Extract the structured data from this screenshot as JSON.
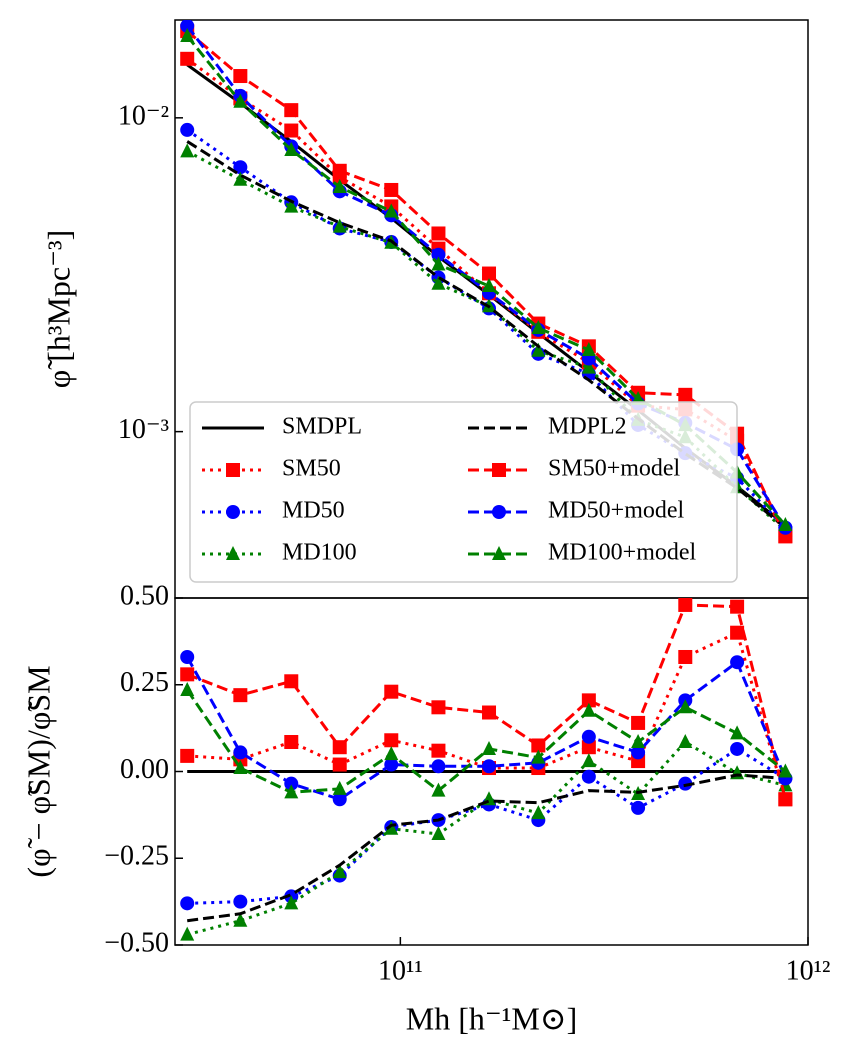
{
  "chart_data": [
    {
      "type": "line",
      "xscale": "log",
      "yscale": "log",
      "ylabel": "φ̃ [h³Mpc⁻³]",
      "xlim": [
        28000000000.0,
        1000000000000.0
      ],
      "ylim": [
        0.000295,
        0.0205
      ],
      "yticks": [
        {
          "value": 0.01,
          "label": "10⁻²"
        },
        {
          "value": 0.001,
          "label": "10⁻³"
        }
      ],
      "legend": "lower left",
      "x": [
        30000000000.0,
        40500000000.0,
        54000000000.0,
        71000000000.0,
        95000000000.0,
        124000000000.0,
        165000000000.0,
        218000000000.0,
        290000000000.0,
        383000000000.0,
        500000000000.0,
        670000000000.0,
        880000000000.0
      ],
      "series": [
        {
          "name": "SMDPL",
          "color": "#000000",
          "linestyle": "solid",
          "marker": "none",
          "values": [
            0.01476,
            0.01114,
            0.0084,
            0.00634,
            0.00479,
            0.00361,
            0.00273,
            0.00206,
            0.00155,
            0.00117,
            0.000885,
            0.000668,
            0.000504
          ]
        },
        {
          "name": "SM50",
          "color": "#ff0000",
          "linestyle": "dotted",
          "marker": "square",
          "values": [
            0.01542,
            0.01153,
            0.00911,
            0.00647,
            0.00522,
            0.00383,
            0.00276,
            0.00208,
            0.00166,
            0.00121,
            0.001177,
            0.000935,
            0.000464
          ]
        },
        {
          "name": "MD50",
          "color": "#0000ff",
          "linestyle": "dotted",
          "marker": "circle",
          "values": [
            0.00915,
            0.00696,
            0.00538,
            0.00444,
            0.00402,
            0.0031,
            0.00247,
            0.00177,
            0.00153,
            0.00105,
            0.000854,
            0.000711,
            0.000494
          ]
        },
        {
          "name": "MD100",
          "color": "#008000",
          "linestyle": "dotted",
          "marker": "triangle",
          "values": [
            0.00782,
            0.00635,
            0.00521,
            0.0045,
            0.004,
            0.00296,
            0.00251,
            0.00181,
            0.0016,
            0.00109,
            0.00096,
            0.000665,
            0.000484
          ]
        },
        {
          "name": "MDPL2",
          "color": "#000000",
          "linestyle": "dashed",
          "marker": "none",
          "values": [
            0.00841,
            0.00657,
            0.00542,
            0.00463,
            0.00405,
            0.0031,
            0.0025,
            0.00187,
            0.00146,
            0.0011,
            0.00085,
            0.000661,
            0.000494
          ]
        },
        {
          "name": "SM50+model",
          "color": "#ff0000",
          "linestyle": "dashed",
          "marker": "square",
          "values": [
            0.01889,
            0.01359,
            0.01058,
            0.00678,
            0.00589,
            0.00428,
            0.00319,
            0.00221,
            0.00187,
            0.00133,
            0.00131,
            0.000985,
            0.000464
          ]
        },
        {
          "name": "MD50+model",
          "color": "#0000ff",
          "linestyle": "dashed",
          "marker": "circle",
          "values": [
            0.01963,
            0.01175,
            0.00811,
            0.00583,
            0.00489,
            0.00366,
            0.00277,
            0.00211,
            0.00171,
            0.00123,
            0.001066,
            0.000878,
            0.000494
          ]
        },
        {
          "name": "MD100+model",
          "color": "#008000",
          "linestyle": "dashed",
          "marker": "triangle",
          "values": [
            0.01823,
            0.01125,
            0.0079,
            0.00602,
            0.00503,
            0.00341,
            0.00291,
            0.00214,
            0.00182,
            0.00127,
            0.001049,
            0.000741,
            0.000504
          ]
        }
      ]
    },
    {
      "type": "line",
      "xscale": "log",
      "yscale": "linear",
      "xlabel": "Mh [h⁻¹M⊙]",
      "ylabel": "(φ̃ − φ̃SM)/φ̃SM",
      "xlim": [
        28000000000.0,
        1000000000000.0
      ],
      "ylim": [
        -0.5,
        0.5
      ],
      "xticks": [
        {
          "value": 100000000000.0,
          "label": "10¹¹"
        },
        {
          "value": 1000000000000.0,
          "label": "10¹²"
        }
      ],
      "yticks": [
        {
          "value": -0.5,
          "label": "−0.50"
        },
        {
          "value": -0.25,
          "label": "−0.25"
        },
        {
          "value": 0,
          "label": "0.00"
        },
        {
          "value": 0.25,
          "label": "0.25"
        },
        {
          "value": 0.5,
          "label": "0.50"
        }
      ],
      "x": [
        30000000000.0,
        40500000000.0,
        54000000000.0,
        71000000000.0,
        95000000000.0,
        124000000000.0,
        165000000000.0,
        218000000000.0,
        290000000000.0,
        383000000000.0,
        500000000000.0,
        670000000000.0,
        880000000000.0
      ],
      "series": [
        {
          "color": "#000000",
          "linestyle": "solid",
          "marker": "none",
          "values": [
            0,
            0,
            0,
            0,
            0,
            0,
            0,
            0,
            0,
            0,
            0,
            0,
            0
          ]
        },
        {
          "color": "#ff0000",
          "linestyle": "dotted",
          "marker": "square",
          "values": [
            0.045,
            0.035,
            0.085,
            0.02,
            0.09,
            0.06,
            0.01,
            0.01,
            0.07,
            0.03,
            0.33,
            0.4,
            -0.08
          ]
        },
        {
          "color": "#0000ff",
          "linestyle": "dotted",
          "marker": "circle",
          "values": [
            -0.38,
            -0.375,
            -0.36,
            -0.3,
            -0.16,
            -0.14,
            -0.095,
            -0.14,
            -0.015,
            -0.105,
            -0.035,
            0.065,
            -0.02
          ]
        },
        {
          "color": "#008000",
          "linestyle": "dotted",
          "marker": "triangle",
          "values": [
            -0.47,
            -0.43,
            -0.38,
            -0.29,
            -0.165,
            -0.18,
            -0.08,
            -0.12,
            0.03,
            -0.065,
            0.085,
            -0.005,
            -0.04
          ]
        },
        {
          "color": "#000000",
          "linestyle": "dashed",
          "marker": "none",
          "values": [
            -0.43,
            -0.41,
            -0.355,
            -0.27,
            -0.155,
            -0.14,
            -0.085,
            -0.09,
            -0.055,
            -0.06,
            -0.04,
            -0.01,
            -0.02
          ]
        },
        {
          "color": "#ff0000",
          "linestyle": "dashed",
          "marker": "square",
          "values": [
            0.28,
            0.22,
            0.26,
            0.07,
            0.23,
            0.185,
            0.17,
            0.075,
            0.205,
            0.14,
            0.48,
            0.475,
            -0.08
          ]
        },
        {
          "color": "#0000ff",
          "linestyle": "dashed",
          "marker": "circle",
          "values": [
            0.33,
            0.055,
            -0.035,
            -0.08,
            0.02,
            0.015,
            0.015,
            0.025,
            0.1,
            0.055,
            0.205,
            0.315,
            -0.02
          ]
        },
        {
          "color": "#008000",
          "linestyle": "dashed",
          "marker": "triangle",
          "values": [
            0.235,
            0.01,
            -0.06,
            -0.05,
            0.05,
            -0.055,
            0.065,
            0.04,
            0.175,
            0.085,
            0.185,
            0.11,
            0
          ]
        }
      ]
    }
  ]
}
